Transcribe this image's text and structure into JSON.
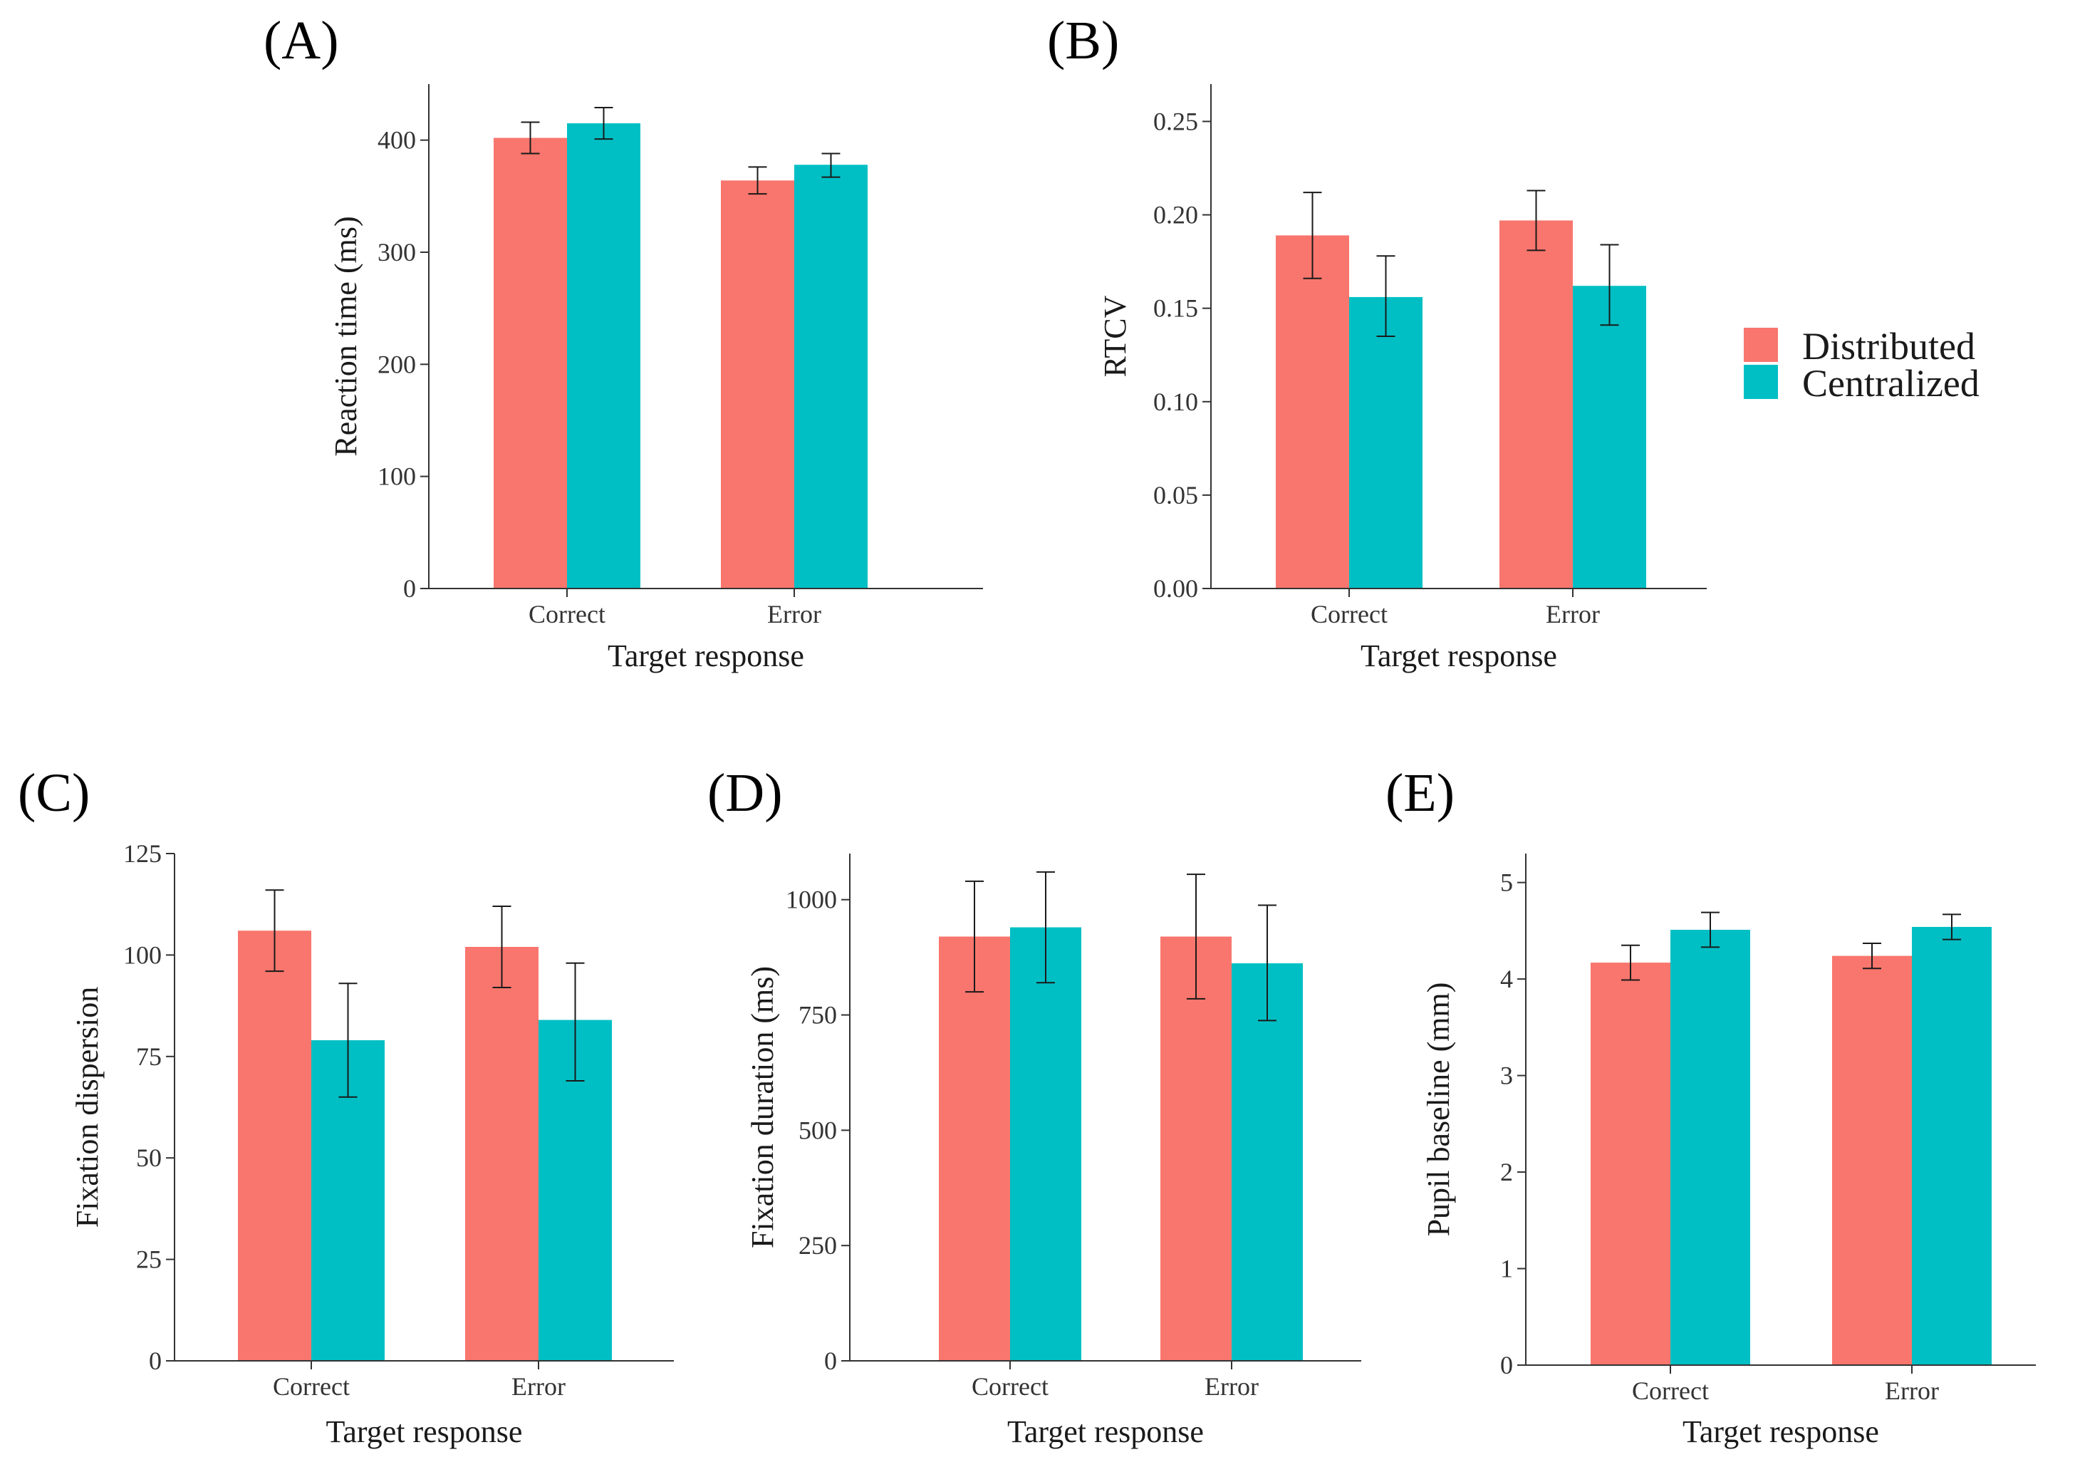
{
  "colors": {
    "distributed": "#F8766D",
    "centralized": "#00BFC4",
    "axis": "#333333"
  },
  "legend": {
    "items": [
      "Distributed",
      "Centralized"
    ]
  },
  "chart_data": [
    {
      "id": "A",
      "panel_label": "(A)",
      "type": "bar",
      "categories": [
        "Correct",
        "Error"
      ],
      "series": [
        {
          "name": "Distributed",
          "values": [
            402,
            364
          ],
          "err_low": [
            388,
            352
          ],
          "err_high": [
            416,
            376
          ]
        },
        {
          "name": "Centralized",
          "values": [
            415,
            378
          ],
          "err_low": [
            401,
            367
          ],
          "err_high": [
            429,
            388
          ]
        }
      ],
      "xlabel": "Target response",
      "ylabel": "Reaction time (ms)",
      "ylim": [
        0,
        450
      ],
      "yticks": [
        0,
        100,
        200,
        300,
        400
      ],
      "ytick_labels": [
        "0",
        "100",
        "200",
        "300",
        "400"
      ]
    },
    {
      "id": "B",
      "panel_label": "(B)",
      "type": "bar",
      "categories": [
        "Correct",
        "Error"
      ],
      "series": [
        {
          "name": "Distributed",
          "values": [
            0.189,
            0.197
          ],
          "err_low": [
            0.166,
            0.181
          ],
          "err_high": [
            0.212,
            0.213
          ]
        },
        {
          "name": "Centralized",
          "values": [
            0.156,
            0.162
          ],
          "err_low": [
            0.135,
            0.141
          ],
          "err_high": [
            0.178,
            0.184
          ]
        }
      ],
      "xlabel": "Target response",
      "ylabel": "RTCV",
      "ylim": [
        0,
        0.27
      ],
      "yticks": [
        0,
        0.05,
        0.1,
        0.15,
        0.2,
        0.25
      ],
      "ytick_labels": [
        "0.00",
        "0.05",
        "0.10",
        "0.15",
        "0.20",
        "0.25"
      ]
    },
    {
      "id": "C",
      "panel_label": "(C)",
      "type": "bar",
      "categories": [
        "Correct",
        "Error"
      ],
      "series": [
        {
          "name": "Distributed",
          "values": [
            106,
            102
          ],
          "err_low": [
            96,
            92
          ],
          "err_high": [
            116,
            112
          ]
        },
        {
          "name": "Centralized",
          "values": [
            79,
            84
          ],
          "err_low": [
            65,
            69
          ],
          "err_high": [
            93,
            98
          ]
        }
      ],
      "xlabel": "Target response",
      "ylabel": "Fixation dispersion",
      "ylim": [
        0,
        125
      ],
      "yticks": [
        0,
        25,
        50,
        75,
        100,
        125
      ],
      "ytick_labels": [
        "0",
        "25",
        "50",
        "75",
        "100",
        "125"
      ]
    },
    {
      "id": "D",
      "panel_label": "(D)",
      "type": "bar",
      "categories": [
        "Correct",
        "Error"
      ],
      "series": [
        {
          "name": "Distributed",
          "values": [
            920,
            920
          ],
          "err_low": [
            800,
            785
          ],
          "err_high": [
            1040,
            1055
          ]
        },
        {
          "name": "Centralized",
          "values": [
            940,
            862
          ],
          "err_low": [
            820,
            738
          ],
          "err_high": [
            1060,
            988
          ]
        }
      ],
      "xlabel": "Target response",
      "ylabel": "Fixation duration (ms)",
      "ylim": [
        0,
        1100
      ],
      "yticks": [
        0,
        250,
        500,
        750,
        1000
      ],
      "ytick_labels": [
        "0",
        "250",
        "500",
        "750",
        "1000"
      ]
    },
    {
      "id": "E",
      "panel_label": "(E)",
      "type": "bar",
      "categories": [
        "Correct",
        "Error"
      ],
      "series": [
        {
          "name": "Distributed",
          "values": [
            4.17,
            4.24
          ],
          "err_low": [
            3.99,
            4.11
          ],
          "err_high": [
            4.35,
            4.37
          ]
        },
        {
          "name": "Centralized",
          "values": [
            4.51,
            4.54
          ],
          "err_low": [
            4.33,
            4.41
          ],
          "err_high": [
            4.69,
            4.67
          ]
        }
      ],
      "xlabel": "Target response",
      "ylabel": "Pupil baseline (mm)",
      "ylim": [
        0,
        5.3
      ],
      "yticks": [
        0,
        1,
        2,
        3,
        4,
        5
      ],
      "ytick_labels": [
        "0",
        "1",
        "2",
        "3",
        "4",
        "5"
      ]
    }
  ]
}
